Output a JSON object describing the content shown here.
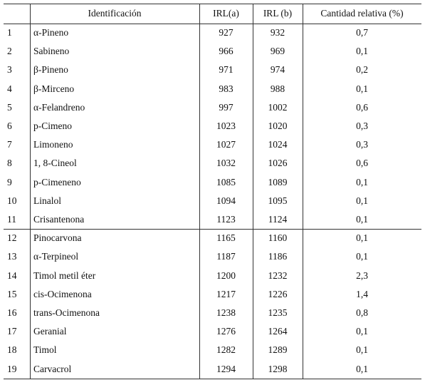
{
  "table": {
    "header": [
      "Identificación",
      "IRL(a)",
      "IRL (b)",
      "Cantidad relativa (%)"
    ],
    "rows": [
      [
        1,
        "α-Pineno",
        927,
        932,
        "0,7"
      ],
      [
        2,
        "Sabineno",
        966,
        969,
        "0,1"
      ],
      [
        3,
        "β-Pineno",
        971,
        974,
        "0,2"
      ],
      [
        4,
        "β-Mirceno",
        983,
        988,
        "0,1"
      ],
      [
        5,
        "α-Felandreno",
        997,
        1002,
        "0,6"
      ],
      [
        6,
        "p-Cimeno",
        1023,
        1020,
        "0,3"
      ],
      [
        7,
        "Limoneno",
        1027,
        1024,
        "0,3"
      ],
      [
        8,
        "1, 8-Cineol",
        1032,
        1026,
        "0,6"
      ],
      [
        9,
        "p-Cimeneno",
        1085,
        1089,
        "0,1"
      ],
      [
        10,
        "Linalol",
        1094,
        1095,
        "0,1"
      ],
      [
        11,
        "Crisantenona",
        1123,
        1124,
        "0,1"
      ],
      [
        12,
        "Pinocarvona",
        1165,
        1160,
        "0,1"
      ],
      [
        13,
        "α-Terpineol",
        1187,
        1186,
        "0,1"
      ],
      [
        14,
        "Timol metil éter",
        1200,
        1232,
        "2,3"
      ],
      [
        15,
        "cis-Ocimenona",
        1217,
        1226,
        "1,4"
      ],
      [
        16,
        "trans-Ocimenona",
        1238,
        1235,
        "0,8"
      ],
      [
        17,
        "Geranial",
        1276,
        1264,
        "0,1"
      ],
      [
        18,
        "Timol",
        1282,
        1289,
        "0,1"
      ],
      [
        19,
        "Carvacrol",
        1294,
        1298,
        "0,1"
      ]
    ]
  }
}
